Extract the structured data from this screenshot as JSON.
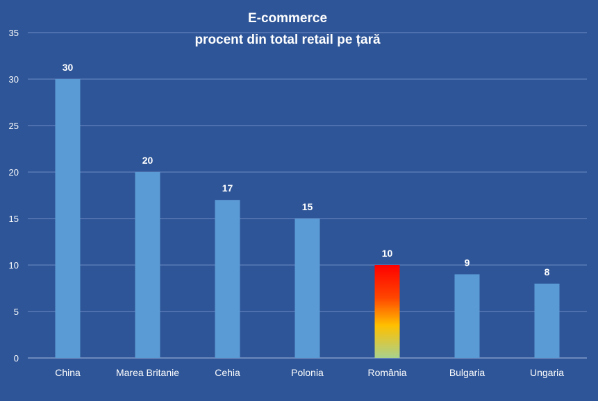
{
  "chart_data": {
    "type": "bar",
    "title_lines": [
      "E-commerce",
      "procent din total retail pe țară"
    ],
    "categories": [
      "China",
      "Marea Britanie",
      "Cehia",
      "Polonia",
      "România",
      "Bulgaria",
      "Ungaria"
    ],
    "values": [
      30,
      20,
      17,
      15,
      10,
      9,
      8
    ],
    "data_labels": [
      "30",
      "20",
      "17",
      "15",
      "10",
      "9",
      "8"
    ],
    "ylim": [
      0,
      35
    ],
    "yticks": [
      0,
      5,
      10,
      15,
      20,
      25,
      30,
      35
    ],
    "ytick_labels": [
      "0",
      "5",
      "10",
      "15",
      "20",
      "25",
      "30",
      "35"
    ],
    "xlabel": "",
    "ylabel": "",
    "grid": true,
    "legend": "none",
    "colors": {
      "background": "#2e5597",
      "bar": "#5b9bd5",
      "highlight_gradient": [
        "#ff0000",
        "#ff4500",
        "#ffc000",
        "#a9d18e"
      ],
      "highlight_category": "România",
      "text": "#ffffff",
      "gridline": "#6d8cc4"
    }
  }
}
